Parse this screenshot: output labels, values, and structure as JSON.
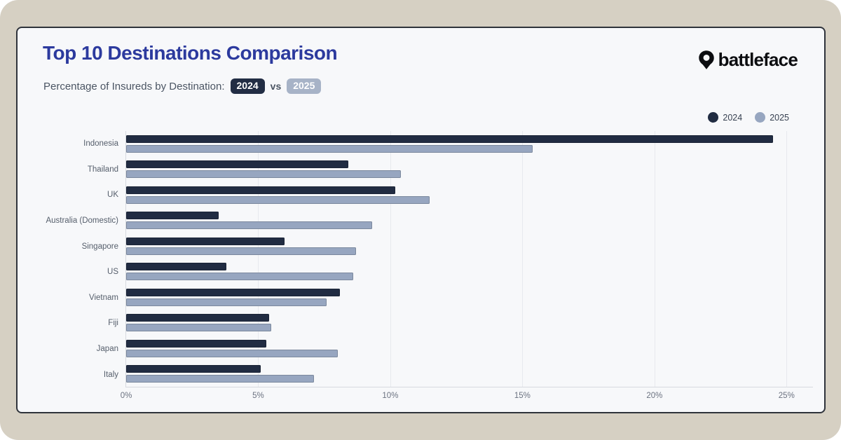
{
  "header": {
    "title": "Top 10 Destinations Comparison",
    "subtitle_prefix": "Percentage of Insureds by Destination:",
    "badge_2024": "2024",
    "vs_label": "vs",
    "badge_2025": "2025",
    "brand": "battleface"
  },
  "colors": {
    "title_accent": "#2c3a9e",
    "frame_bg": "#d6d0c3",
    "card_bg": "#f7f8fa",
    "badge_2024_bg": "#222d44",
    "badge_2025_bg": "#a7b3c7",
    "series_2024": "#212c42",
    "series_2025": "#97a6c0"
  },
  "chart_data": {
    "type": "bar",
    "orientation": "horizontal",
    "title": "Top 10 Destinations Comparison",
    "xlabel": "",
    "ylabel": "",
    "categories": [
      "Indonesia",
      "Thailand",
      "UK",
      "Australia (Domestic)",
      "Singapore",
      "US",
      "Vietnam",
      "Fiji",
      "Japan",
      "Italy"
    ],
    "series": [
      {
        "name": "2024",
        "color": "#212c42",
        "values": [
          24.5,
          8.4,
          10.2,
          3.5,
          6.0,
          3.8,
          8.1,
          5.4,
          5.3,
          5.1
        ]
      },
      {
        "name": "2025",
        "color": "#97a6c0",
        "values": [
          15.4,
          10.4,
          11.5,
          9.3,
          8.7,
          8.6,
          7.6,
          5.5,
          8.0,
          7.1
        ]
      }
    ],
    "x_ticks": [
      "0%",
      "5%",
      "10%",
      "15%",
      "20%",
      "25%"
    ],
    "x_tick_values": [
      0,
      5,
      10,
      15,
      20,
      25
    ],
    "xlim": [
      0,
      26
    ],
    "grid": true,
    "legend_position": "top-right"
  }
}
